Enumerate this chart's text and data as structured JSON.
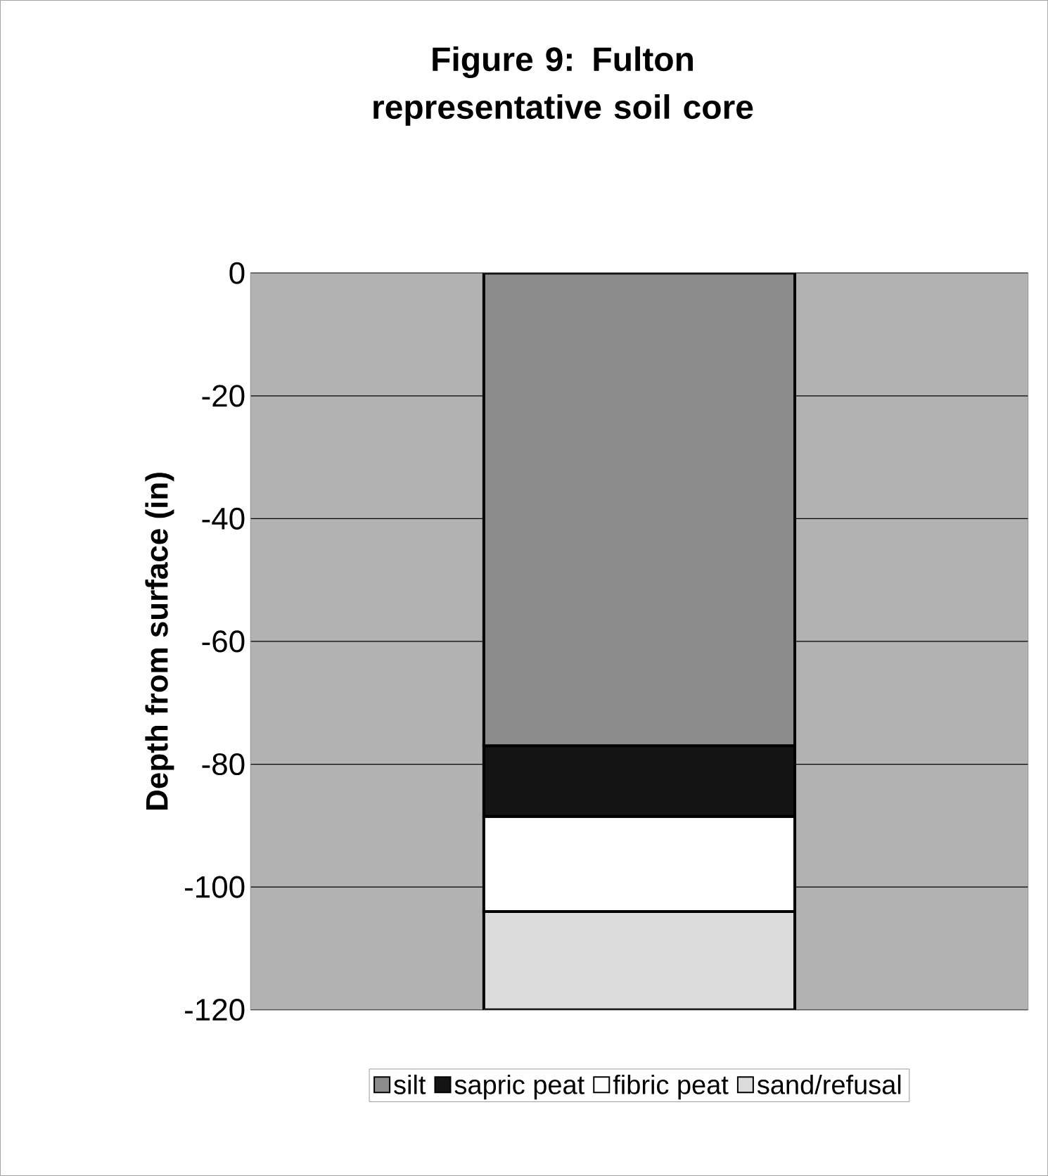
{
  "chart_data": {
    "type": "bar",
    "stacked": true,
    "title": "Figure 9: Fulton representative soil core",
    "ylabel": "Depth from surface (in)",
    "categories": [
      null
    ],
    "series": [
      {
        "name": "silt",
        "color": "#8c8c8c",
        "values": [
          -77
        ]
      },
      {
        "name": "sapric peat",
        "color": "#141414",
        "values": [
          -11.5
        ]
      },
      {
        "name": "fibric peat",
        "color": "#ffffff",
        "values": [
          -15.5
        ]
      },
      {
        "name": "sand/refusal",
        "color": "#dcdcdc",
        "values": [
          -16
        ]
      }
    ],
    "ylim": [
      -120,
      0
    ],
    "yticks": [
      0,
      -20,
      -40,
      -60,
      -80,
      -100,
      -120
    ],
    "grid": "y",
    "legend": "bottom"
  }
}
